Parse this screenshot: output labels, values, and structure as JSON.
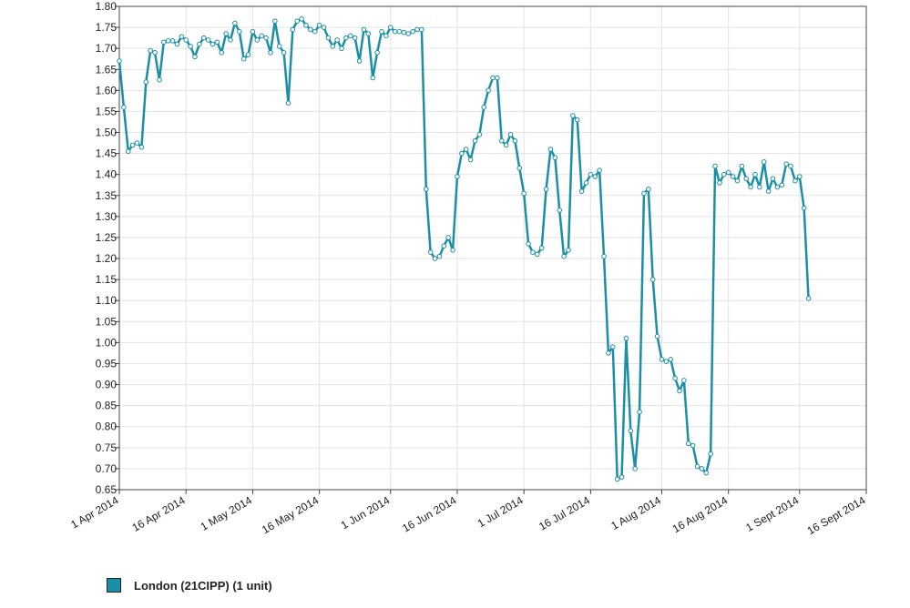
{
  "chart_data": {
    "type": "line",
    "ylim": [
      0.65,
      1.8
    ],
    "y_ticks": [
      "1.80",
      "1.75",
      "1.70",
      "1.65",
      "1.60",
      "1.55",
      "1.50",
      "1.45",
      "1.40",
      "1.35",
      "1.30",
      "1.25",
      "1.20",
      "1.15",
      "1.10",
      "1.05",
      "1.00",
      "0.95",
      "0.90",
      "0.85",
      "0.80",
      "0.75",
      "0.70",
      "0.65"
    ],
    "x_range": [
      "2014-04-01",
      "2014-09-16"
    ],
    "x_ticks": [
      {
        "date": "2014-04-01",
        "label": "1 Apr 2014"
      },
      {
        "date": "2014-04-16",
        "label": "16 Apr 2014"
      },
      {
        "date": "2014-05-01",
        "label": "1 May 2014"
      },
      {
        "date": "2014-05-16",
        "label": "16 May 2014"
      },
      {
        "date": "2014-06-01",
        "label": "1 Jun 2014"
      },
      {
        "date": "2014-06-16",
        "label": "16 Jun 2014"
      },
      {
        "date": "2014-07-01",
        "label": "1 Jul 2014"
      },
      {
        "date": "2014-07-16",
        "label": "16 Jul 2014"
      },
      {
        "date": "2014-08-01",
        "label": "1 Aug 2014"
      },
      {
        "date": "2014-08-16",
        "label": "16 Aug 2014"
      },
      {
        "date": "2014-09-01",
        "label": "1 Sept 2014"
      },
      {
        "date": "2014-09-16",
        "label": "16 Sept 2014"
      }
    ],
    "grid": true,
    "legend_position": "bottom-left",
    "series": [
      {
        "name": "London (21CIPP) (1 unit)",
        "color": "#1b8fa6",
        "points": [
          [
            "2014-04-01",
            1.67
          ],
          [
            "2014-04-02",
            1.56
          ],
          [
            "2014-04-03",
            1.455
          ],
          [
            "2014-04-04",
            1.47
          ],
          [
            "2014-04-05",
            1.475
          ],
          [
            "2014-04-06",
            1.465
          ],
          [
            "2014-04-07",
            1.62
          ],
          [
            "2014-04-08",
            1.695
          ],
          [
            "2014-04-09",
            1.69
          ],
          [
            "2014-04-10",
            1.625
          ],
          [
            "2014-04-11",
            1.715
          ],
          [
            "2014-04-12",
            1.718
          ],
          [
            "2014-04-13",
            1.718
          ],
          [
            "2014-04-14",
            1.71
          ],
          [
            "2014-04-15",
            1.728
          ],
          [
            "2014-04-16",
            1.72
          ],
          [
            "2014-04-17",
            1.705
          ],
          [
            "2014-04-18",
            1.68
          ],
          [
            "2014-04-19",
            1.71
          ],
          [
            "2014-04-20",
            1.725
          ],
          [
            "2014-04-21",
            1.72
          ],
          [
            "2014-04-22",
            1.71
          ],
          [
            "2014-04-23",
            1.715
          ],
          [
            "2014-04-24",
            1.69
          ],
          [
            "2014-04-25",
            1.735
          ],
          [
            "2014-04-26",
            1.72
          ],
          [
            "2014-04-27",
            1.76
          ],
          [
            "2014-04-28",
            1.74
          ],
          [
            "2014-04-29",
            1.675
          ],
          [
            "2014-04-30",
            1.685
          ],
          [
            "2014-05-01",
            1.74
          ],
          [
            "2014-05-02",
            1.72
          ],
          [
            "2014-05-03",
            1.73
          ],
          [
            "2014-05-04",
            1.725
          ],
          [
            "2014-05-05",
            1.69
          ],
          [
            "2014-05-06",
            1.765
          ],
          [
            "2014-05-07",
            1.705
          ],
          [
            "2014-05-08",
            1.69
          ],
          [
            "2014-05-09",
            1.57
          ],
          [
            "2014-05-10",
            1.745
          ],
          [
            "2014-05-11",
            1.765
          ],
          [
            "2014-05-12",
            1.77
          ],
          [
            "2014-05-13",
            1.755
          ],
          [
            "2014-05-14",
            1.745
          ],
          [
            "2014-05-15",
            1.74
          ],
          [
            "2014-05-16",
            1.755
          ],
          [
            "2014-05-17",
            1.75
          ],
          [
            "2014-05-18",
            1.725
          ],
          [
            "2014-05-19",
            1.705
          ],
          [
            "2014-05-20",
            1.72
          ],
          [
            "2014-05-21",
            1.7
          ],
          [
            "2014-05-22",
            1.725
          ],
          [
            "2014-05-23",
            1.73
          ],
          [
            "2014-05-24",
            1.725
          ],
          [
            "2014-05-25",
            1.67
          ],
          [
            "2014-05-26",
            1.745
          ],
          [
            "2014-05-27",
            1.735
          ],
          [
            "2014-05-28",
            1.63
          ],
          [
            "2014-05-29",
            1.69
          ],
          [
            "2014-05-30",
            1.74
          ],
          [
            "2014-05-31",
            1.73
          ],
          [
            "2014-06-01",
            1.75
          ],
          [
            "2014-06-02",
            1.74
          ],
          [
            "2014-06-03",
            1.74
          ],
          [
            "2014-06-04",
            1.738
          ],
          [
            "2014-06-05",
            1.735
          ],
          [
            "2014-06-06",
            1.74
          ],
          [
            "2014-06-07",
            1.745
          ],
          [
            "2014-06-08",
            1.745
          ],
          [
            "2014-06-09",
            1.365
          ],
          [
            "2014-06-10",
            1.215
          ],
          [
            "2014-06-11",
            1.2
          ],
          [
            "2014-06-12",
            1.205
          ],
          [
            "2014-06-13",
            1.23
          ],
          [
            "2014-06-14",
            1.25
          ],
          [
            "2014-06-15",
            1.22
          ],
          [
            "2014-06-16",
            1.395
          ],
          [
            "2014-06-17",
            1.45
          ],
          [
            "2014-06-18",
            1.46
          ],
          [
            "2014-06-19",
            1.435
          ],
          [
            "2014-06-20",
            1.48
          ],
          [
            "2014-06-21",
            1.495
          ],
          [
            "2014-06-22",
            1.56
          ],
          [
            "2014-06-23",
            1.6
          ],
          [
            "2014-06-24",
            1.63
          ],
          [
            "2014-06-25",
            1.63
          ],
          [
            "2014-06-26",
            1.48
          ],
          [
            "2014-06-27",
            1.47
          ],
          [
            "2014-06-28",
            1.495
          ],
          [
            "2014-06-29",
            1.48
          ],
          [
            "2014-06-30",
            1.415
          ],
          [
            "2014-07-01",
            1.355
          ],
          [
            "2014-07-02",
            1.235
          ],
          [
            "2014-07-03",
            1.215
          ],
          [
            "2014-07-04",
            1.21
          ],
          [
            "2014-07-05",
            1.225
          ],
          [
            "2014-07-06",
            1.365
          ],
          [
            "2014-07-07",
            1.46
          ],
          [
            "2014-07-08",
            1.44
          ],
          [
            "2014-07-09",
            1.315
          ],
          [
            "2014-07-10",
            1.205
          ],
          [
            "2014-07-11",
            1.22
          ],
          [
            "2014-07-12",
            1.54
          ],
          [
            "2014-07-13",
            1.53
          ],
          [
            "2014-07-14",
            1.36
          ],
          [
            "2014-07-15",
            1.38
          ],
          [
            "2014-07-16",
            1.4
          ],
          [
            "2014-07-17",
            1.395
          ],
          [
            "2014-07-18",
            1.41
          ],
          [
            "2014-07-19",
            1.205
          ],
          [
            "2014-07-20",
            0.975
          ],
          [
            "2014-07-21",
            0.99
          ],
          [
            "2014-07-22",
            0.675
          ],
          [
            "2014-07-23",
            0.68
          ],
          [
            "2014-07-24",
            1.01
          ],
          [
            "2014-07-25",
            0.79
          ],
          [
            "2014-07-26",
            0.7
          ],
          [
            "2014-07-27",
            0.835
          ],
          [
            "2014-07-28",
            1.355
          ],
          [
            "2014-07-29",
            1.365
          ],
          [
            "2014-07-30",
            1.15
          ],
          [
            "2014-07-31",
            1.015
          ],
          [
            "2014-08-01",
            0.96
          ],
          [
            "2014-08-02",
            0.955
          ],
          [
            "2014-08-03",
            0.96
          ],
          [
            "2014-08-04",
            0.915
          ],
          [
            "2014-08-05",
            0.885
          ],
          [
            "2014-08-06",
            0.91
          ],
          [
            "2014-08-07",
            0.76
          ],
          [
            "2014-08-08",
            0.755
          ],
          [
            "2014-08-09",
            0.705
          ],
          [
            "2014-08-10",
            0.7
          ],
          [
            "2014-08-11",
            0.69
          ],
          [
            "2014-08-12",
            0.735
          ],
          [
            "2014-08-13",
            1.42
          ],
          [
            "2014-08-14",
            1.38
          ],
          [
            "2014-08-15",
            1.4
          ],
          [
            "2014-08-16",
            1.405
          ],
          [
            "2014-08-17",
            1.395
          ],
          [
            "2014-08-18",
            1.385
          ],
          [
            "2014-08-19",
            1.42
          ],
          [
            "2014-08-20",
            1.39
          ],
          [
            "2014-08-21",
            1.37
          ],
          [
            "2014-08-22",
            1.4
          ],
          [
            "2014-08-23",
            1.37
          ],
          [
            "2014-08-24",
            1.43
          ],
          [
            "2014-08-25",
            1.36
          ],
          [
            "2014-08-26",
            1.39
          ],
          [
            "2014-08-27",
            1.37
          ],
          [
            "2014-08-28",
            1.375
          ],
          [
            "2014-08-29",
            1.425
          ],
          [
            "2014-08-30",
            1.42
          ],
          [
            "2014-08-31",
            1.385
          ],
          [
            "2014-09-01",
            1.395
          ],
          [
            "2014-09-02",
            1.32
          ],
          [
            "2014-09-03",
            1.105
          ]
        ]
      }
    ]
  }
}
